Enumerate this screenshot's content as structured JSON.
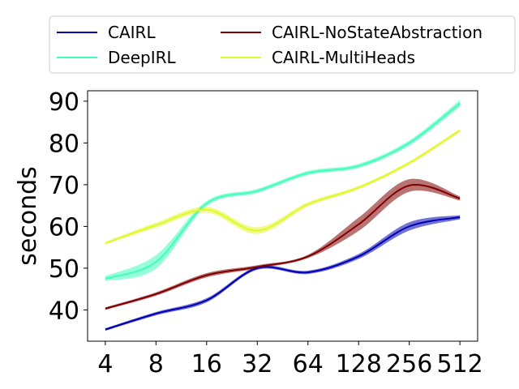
{
  "chart_data": {
    "type": "line",
    "x": [
      4,
      8,
      16,
      32,
      64,
      128,
      256,
      512
    ],
    "x_tick_labels": [
      "4",
      "8",
      "16",
      "32",
      "64",
      "128",
      "256",
      "512"
    ],
    "x_scale": "log2",
    "ylabel": "seconds",
    "ylim": [
      32.5,
      92.5
    ],
    "y_ticks": [
      40,
      50,
      60,
      70,
      80,
      90
    ],
    "y_tick_labels": [
      "40",
      "50",
      "60",
      "70",
      "80",
      "90"
    ],
    "grid": false,
    "legend_position": "top (above plot), 2 columns",
    "series": [
      {
        "name": "CAIRL",
        "color": "#0000b2",
        "values": [
          35.3,
          39.1,
          42.3,
          50.0,
          49.0,
          52.8,
          60.0,
          62.2
        ],
        "band": [
          0.3,
          0.4,
          0.5,
          0.4,
          0.4,
          0.6,
          1.0,
          0.5
        ]
      },
      {
        "name": "CAIRL-NoStateAbstraction",
        "color": "#800000",
        "values": [
          40.3,
          43.8,
          48.3,
          50.3,
          52.8,
          60.5,
          69.8,
          66.7
        ],
        "band": [
          0.3,
          0.4,
          0.5,
          0.4,
          0.4,
          1.6,
          1.5,
          0.5
        ]
      },
      {
        "name": "DeepIRL",
        "color": "#3fffb9",
        "values": [
          47.5,
          51.5,
          65.5,
          68.5,
          72.8,
          74.5,
          80.0,
          89.5
        ],
        "band": [
          0.6,
          1.6,
          0.6,
          0.5,
          0.5,
          0.5,
          0.6,
          0.8
        ]
      },
      {
        "name": "CAIRL-MultiHeads",
        "color": "#e1f82a",
        "values": [
          56.0,
          60.3,
          64.0,
          59.0,
          65.3,
          69.3,
          75.2,
          83.0
        ],
        "band": [
          0.3,
          0.6,
          0.7,
          0.8,
          0.5,
          0.4,
          0.4,
          0.4
        ]
      }
    ]
  },
  "legend": {
    "items": [
      "CAIRL",
      "DeepIRL",
      "CAIRL-NoStateAbstraction",
      "CAIRL-MultiHeads"
    ]
  }
}
